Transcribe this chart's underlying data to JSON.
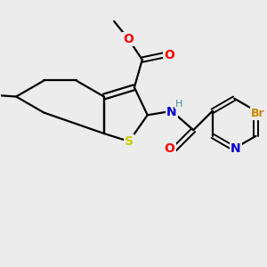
{
  "background_color": "#ececec",
  "atom_colors": {
    "O": "#ff0000",
    "N": "#0000cd",
    "S": "#cccc00",
    "Br": "#cc8800",
    "H": "#4a8f8f",
    "C": "#000000"
  },
  "bond_color": "#000000",
  "bond_width": 1.6,
  "figsize": [
    3.0,
    3.0
  ],
  "dpi": 100
}
